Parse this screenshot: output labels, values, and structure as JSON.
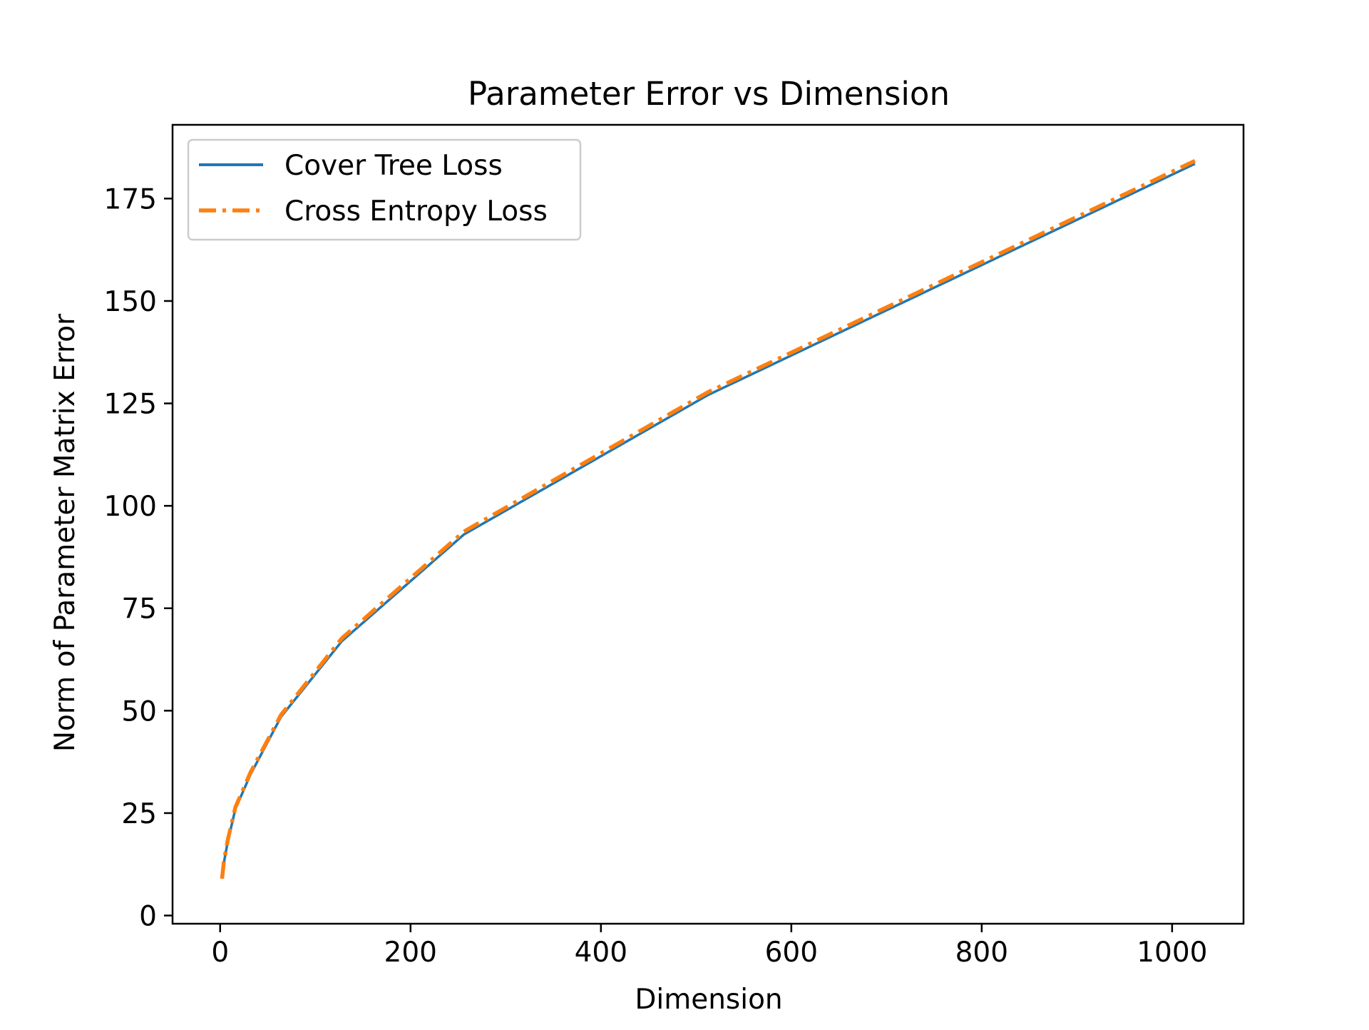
{
  "chart_data": {
    "type": "line",
    "title": "Parameter Error vs Dimension",
    "xlabel": "Dimension",
    "ylabel": "Norm of Parameter Matrix Error",
    "xlim": [
      -50,
      1075
    ],
    "ylim": [
      -2,
      193
    ],
    "xticks": [
      0,
      200,
      400,
      600,
      800,
      1000
    ],
    "yticks": [
      0,
      25,
      50,
      75,
      100,
      125,
      150,
      175
    ],
    "grid": false,
    "legend_position": "upper-left",
    "series": [
      {
        "name": "Cover Tree Loss",
        "color": "#1f77b4",
        "style": "solid",
        "x": [
          2,
          4,
          8,
          16,
          32,
          64,
          128,
          256,
          512,
          1024
        ],
        "y": [
          9,
          13,
          18,
          26,
          34.5,
          48.5,
          67,
          93,
          127,
          183.5
        ]
      },
      {
        "name": "Cross Entropy Loss",
        "color": "#ff7f0e",
        "style": "dashdot",
        "x": [
          2,
          4,
          8,
          16,
          32,
          64,
          128,
          256,
          512,
          1024
        ],
        "y": [
          9,
          13.3,
          18.4,
          26.4,
          35,
          49,
          67.7,
          93.7,
          127.7,
          184.2
        ]
      }
    ]
  }
}
